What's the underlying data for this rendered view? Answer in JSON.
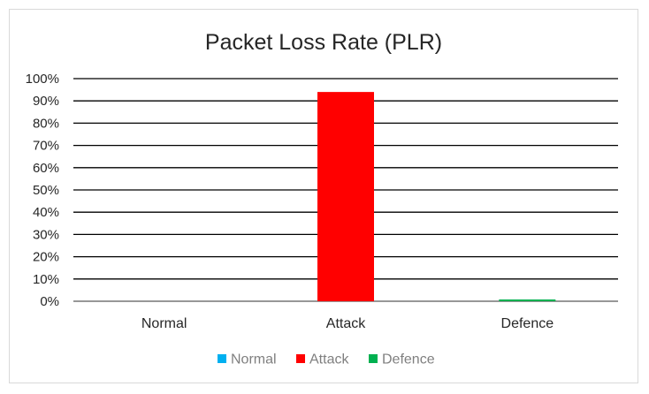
{
  "chart_data": {
    "type": "bar",
    "title": "Packet Loss Rate (PLR)",
    "xlabel": "",
    "ylabel": "",
    "categories": [
      "Normal",
      "Attack",
      "Defence"
    ],
    "values": [
      0.0,
      0.94,
      0.008
    ],
    "colors": [
      "#00b0f0",
      "#ff0000",
      "#00b050"
    ],
    "ylim": [
      0,
      1
    ],
    "yticks": [
      "0%",
      "10%",
      "20%",
      "30%",
      "40%",
      "50%",
      "60%",
      "70%",
      "80%",
      "90%",
      "100%"
    ],
    "grid": true,
    "legend": {
      "placement": "bottom",
      "entries": [
        "Normal",
        "Attack",
        "Defence"
      ]
    }
  }
}
